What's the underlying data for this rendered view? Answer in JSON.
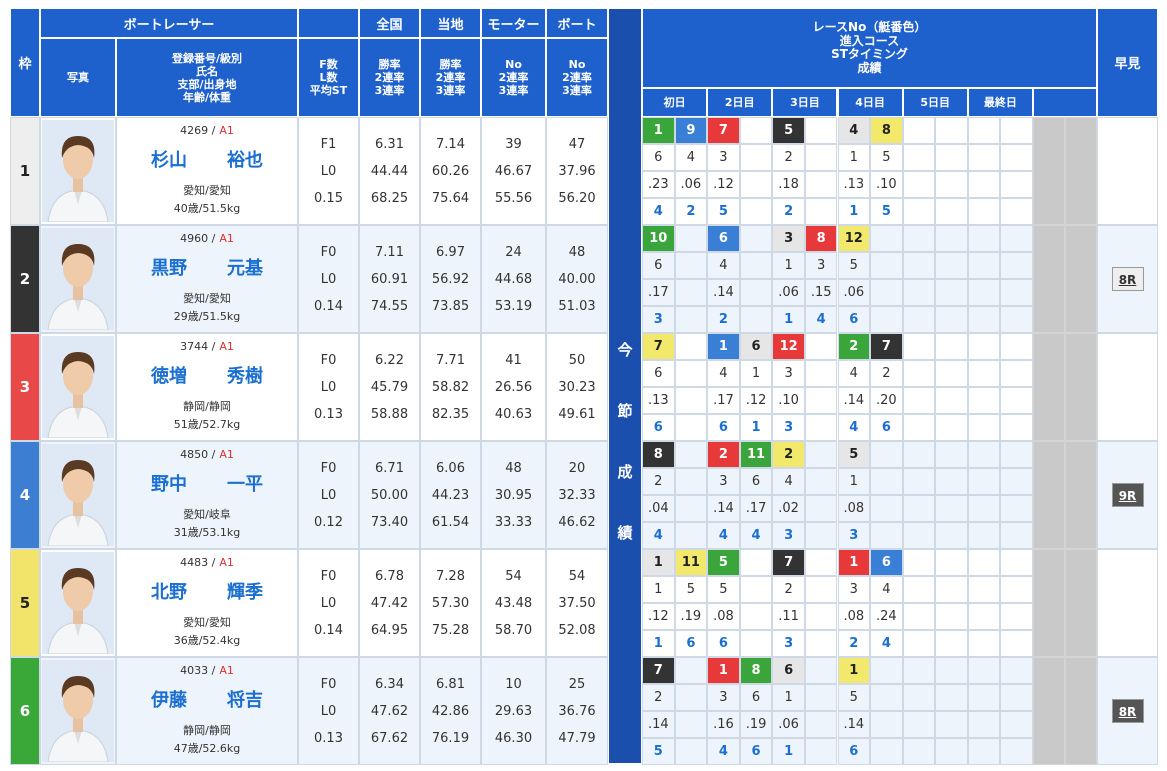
{
  "header": {
    "frame": "枠",
    "racer": "ボートレーサー",
    "photo": "写真",
    "info": [
      "登録番号/級別",
      "氏名",
      "支部/出身地",
      "年齢/体重"
    ],
    "fl": [
      "F数",
      "L数",
      "平均ST"
    ],
    "national": {
      "title": "全国",
      "lines": [
        "勝率",
        "2連率",
        "3連率"
      ]
    },
    "local": {
      "title": "当地",
      "lines": [
        "勝率",
        "2連率",
        "3連率"
      ]
    },
    "motor": {
      "title": "モーター",
      "lines": [
        "No",
        "2連率",
        "3連率"
      ]
    },
    "boat": {
      "title": "ボート",
      "lines": [
        "No",
        "2連率",
        "3連率"
      ]
    },
    "series": "今節成績",
    "race": [
      "レースNo（艇番色）",
      "進入コース",
      "STタイミング",
      "成績"
    ],
    "days": [
      "初日",
      "2日目",
      "3日目",
      "4日目",
      "5日目",
      "最終日"
    ],
    "quick": "早見"
  },
  "rows": [
    {
      "frame": "1",
      "frame_color": "#eeeeee",
      "reg": "4269 /",
      "cls": "A1",
      "family": "杉山",
      "given": "裕也",
      "branch": "愛知/愛知",
      "age": "40歳/51.5kg",
      "fl": [
        "F1",
        "L0",
        "0.15"
      ],
      "national": [
        "6.31",
        "44.44",
        "68.25"
      ],
      "local": [
        "7.14",
        "60.26",
        "75.64"
      ],
      "motor": [
        "39",
        "46.67",
        "55.56"
      ],
      "boat": [
        "47",
        "37.96",
        "56.20"
      ],
      "races": [
        {
          "race": "1",
          "color": "#3aa53a",
          "course": "6",
          "st": ".23",
          "result": "4"
        },
        {
          "race": "9",
          "color": "#3a7fd6",
          "course": "4",
          "st": ".06",
          "result": "2"
        },
        {
          "race": "7",
          "color": "#e8393a",
          "course": "3",
          "st": ".12",
          "result": "5"
        },
        null,
        {
          "race": "5",
          "color": "#333333",
          "course": "2",
          "st": ".18",
          "result": "2"
        },
        null,
        {
          "race": "4",
          "color": "#e6e6e6",
          "course": "1",
          "st": ".13",
          "result": "1"
        },
        {
          "race": "8",
          "color": "#f2e86b",
          "course": "5",
          "st": ".10",
          "result": "5"
        },
        null,
        null,
        null,
        null
      ],
      "quick": null
    },
    {
      "frame": "2",
      "frame_color": "#333333",
      "reg": "4960 /",
      "cls": "A1",
      "family": "黒野",
      "given": "元基",
      "branch": "愛知/愛知",
      "age": "29歳/51.5kg",
      "fl": [
        "F0",
        "L0",
        "0.14"
      ],
      "national": [
        "7.11",
        "60.91",
        "74.55"
      ],
      "local": [
        "6.97",
        "56.92",
        "73.85"
      ],
      "motor": [
        "24",
        "44.68",
        "53.19"
      ],
      "boat": [
        "48",
        "40.00",
        "51.03"
      ],
      "races": [
        {
          "race": "10",
          "color": "#3aa53a",
          "course": "6",
          "st": ".17",
          "result": "3"
        },
        null,
        {
          "race": "6",
          "color": "#3a7fd6",
          "course": "4",
          "st": ".14",
          "result": "2"
        },
        null,
        {
          "race": "3",
          "color": "#e6e6e6",
          "course": "1",
          "st": ".06",
          "result": "1"
        },
        {
          "race": "8",
          "color": "#e8393a",
          "course": "3",
          "st": ".15",
          "result": "4"
        },
        {
          "race": "12",
          "color": "#f2e86b",
          "course": "5",
          "st": ".06",
          "result": "6"
        },
        null,
        null,
        null,
        null,
        null
      ],
      "quick": {
        "label": "8R",
        "color": "#eeeeee"
      }
    },
    {
      "frame": "3",
      "frame_color": "#e84848",
      "reg": "3744 /",
      "cls": "A1",
      "family": "徳増",
      "given": "秀樹",
      "branch": "静岡/静岡",
      "age": "51歳/52.7kg",
      "fl": [
        "F0",
        "L0",
        "0.13"
      ],
      "national": [
        "6.22",
        "45.79",
        "58.88"
      ],
      "local": [
        "7.71",
        "58.82",
        "82.35"
      ],
      "motor": [
        "41",
        "26.56",
        "40.63"
      ],
      "boat": [
        "50",
        "30.23",
        "49.61"
      ],
      "races": [
        {
          "race": "7",
          "color": "#f2e86b",
          "course": "6",
          "st": ".13",
          "result": "6"
        },
        null,
        {
          "race": "1",
          "color": "#3a7fd6",
          "course": "4",
          "st": ".17",
          "result": "6"
        },
        {
          "race": "6",
          "color": "#e6e6e6",
          "course": "1",
          "st": ".12",
          "result": "1"
        },
        {
          "race": "12",
          "color": "#e8393a",
          "course": "3",
          "st": ".10",
          "result": "3"
        },
        null,
        {
          "race": "2",
          "color": "#3aa53a",
          "course": "4",
          "st": ".14",
          "result": "4"
        },
        {
          "race": "7",
          "color": "#333333",
          "course": "2",
          "st": ".20",
          "result": "6"
        },
        null,
        null,
        null,
        null
      ],
      "quick": null
    },
    {
      "frame": "4",
      "frame_color": "#3c7fd2",
      "reg": "4850 /",
      "cls": "A1",
      "family": "野中",
      "given": "一平",
      "branch": "愛知/岐阜",
      "age": "31歳/53.1kg",
      "fl": [
        "F0",
        "L0",
        "0.12"
      ],
      "national": [
        "6.71",
        "50.00",
        "73.40"
      ],
      "local": [
        "6.06",
        "44.23",
        "61.54"
      ],
      "motor": [
        "48",
        "30.95",
        "33.33"
      ],
      "boat": [
        "20",
        "32.33",
        "46.62"
      ],
      "races": [
        {
          "race": "8",
          "color": "#333333",
          "course": "2",
          "st": ".04",
          "result": "4"
        },
        null,
        {
          "race": "2",
          "color": "#e8393a",
          "course": "3",
          "st": ".14",
          "result": "4"
        },
        {
          "race": "11",
          "color": "#3aa53a",
          "course": "6",
          "st": ".17",
          "result": "4"
        },
        {
          "race": "2",
          "color": "#f2e86b",
          "course": "4",
          "st": ".02",
          "result": "3"
        },
        null,
        {
          "race": "5",
          "color": "#e6e6e6",
          "course": "1",
          "st": ".08",
          "result": "3"
        },
        null,
        null,
        null,
        null,
        null
      ],
      "quick": {
        "label": "9R",
        "color": "#555555"
      }
    },
    {
      "frame": "5",
      "frame_color": "#f2e36a",
      "reg": "4483 /",
      "cls": "A1",
      "family": "北野",
      "given": "輝季",
      "branch": "愛知/愛知",
      "age": "36歳/52.4kg",
      "fl": [
        "F0",
        "L0",
        "0.14"
      ],
      "national": [
        "6.78",
        "47.42",
        "64.95"
      ],
      "local": [
        "7.28",
        "57.30",
        "75.28"
      ],
      "motor": [
        "54",
        "43.48",
        "58.70"
      ],
      "boat": [
        "54",
        "37.50",
        "52.08"
      ],
      "races": [
        {
          "race": "1",
          "color": "#e6e6e6",
          "course": "1",
          "st": ".12",
          "result": "1"
        },
        {
          "race": "11",
          "color": "#f2e86b",
          "course": "5",
          "st": ".19",
          "result": "6"
        },
        {
          "race": "5",
          "color": "#3aa53a",
          "course": "5",
          "st": ".08",
          "result": "6"
        },
        null,
        {
          "race": "7",
          "color": "#333333",
          "course": "2",
          "st": ".11",
          "result": "3"
        },
        null,
        {
          "race": "1",
          "color": "#e8393a",
          "course": "3",
          "st": ".08",
          "result": "2"
        },
        {
          "race": "6",
          "color": "#3a7fd6",
          "course": "4",
          "st": ".24",
          "result": "4"
        },
        null,
        null,
        null,
        null
      ],
      "quick": null
    },
    {
      "frame": "6",
      "frame_color": "#39a839",
      "reg": "4033 /",
      "cls": "A1",
      "family": "伊藤",
      "given": "将吉",
      "branch": "静岡/静岡",
      "age": "47歳/52.6kg",
      "fl": [
        "F0",
        "L0",
        "0.13"
      ],
      "national": [
        "6.34",
        "47.62",
        "67.62"
      ],
      "local": [
        "6.81",
        "42.86",
        "76.19"
      ],
      "motor": [
        "10",
        "29.63",
        "46.30"
      ],
      "boat": [
        "25",
        "36.76",
        "47.79"
      ],
      "races": [
        {
          "race": "7",
          "color": "#333333",
          "course": "2",
          "st": ".14",
          "result": "5"
        },
        null,
        {
          "race": "1",
          "color": "#e8393a",
          "course": "3",
          "st": ".16",
          "result": "4"
        },
        {
          "race": "8",
          "color": "#3aa53a",
          "course": "6",
          "st": ".19",
          "result": "6"
        },
        {
          "race": "6",
          "color": "#e6e6e6",
          "course": "1",
          "st": ".06",
          "result": "1"
        },
        null,
        {
          "race": "1",
          "color": "#f2e86b",
          "course": "5",
          "st": ".14",
          "result": "6"
        },
        null,
        null,
        null,
        null,
        null
      ],
      "quick": {
        "label": "8R",
        "color": "#555555"
      }
    }
  ]
}
